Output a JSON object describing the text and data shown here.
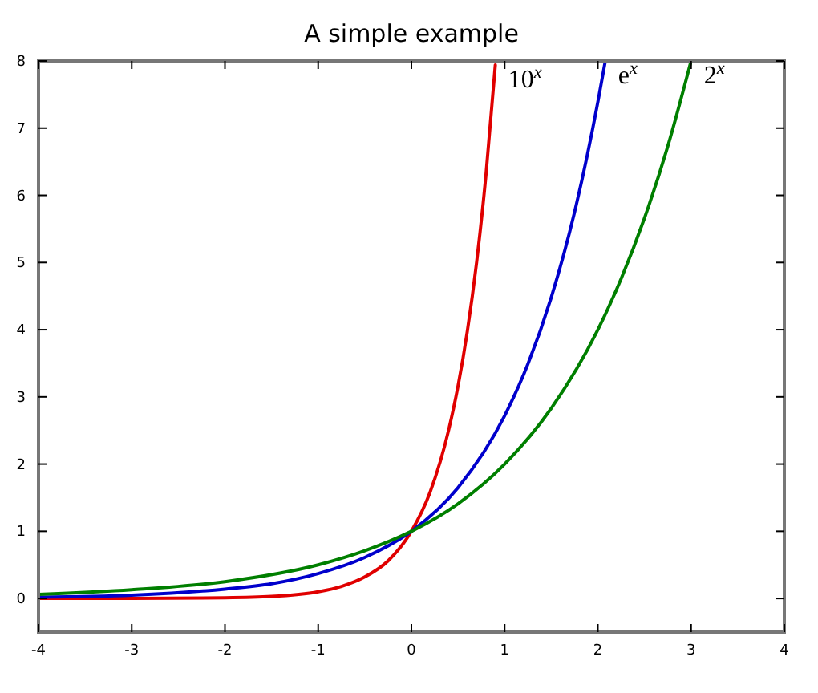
{
  "chart_data": {
    "type": "line",
    "title": "A simple example",
    "xlim": [
      -4,
      4
    ],
    "ylim": [
      -0.5,
      8
    ],
    "xticks": [
      -4,
      -3,
      -2,
      -1,
      0,
      1,
      2,
      3,
      4
    ],
    "yticks": [
      0,
      1,
      2,
      3,
      4,
      5,
      6,
      7,
      8
    ],
    "grid": false,
    "series": [
      {
        "name": "10$^{x}$",
        "color": "#e00000",
        "x": [
          -4,
          -3,
          -2,
          -1.5,
          -1,
          -0.75,
          -0.5,
          -0.25,
          0,
          0.2,
          0.4,
          0.5,
          0.6,
          0.7,
          0.8,
          0.9
        ],
        "values": [
          0,
          0,
          0.01,
          0.03,
          0.1,
          0.18,
          0.32,
          0.56,
          1,
          1.58,
          2.51,
          3.16,
          3.98,
          5.01,
          6.31,
          7.94
        ]
      },
      {
        "name": "e$^{x}$",
        "color": "#0000cc",
        "x": [
          -4,
          -3,
          -2,
          -1.5,
          -1,
          -0.5,
          0,
          0.5,
          1,
          1.25,
          1.5,
          1.75,
          2,
          2.08
        ],
        "values": [
          0.02,
          0.05,
          0.14,
          0.22,
          0.37,
          0.61,
          1,
          1.65,
          2.72,
          3.49,
          4.48,
          5.75,
          7.39,
          8
        ]
      },
      {
        "name": "2$^{x}$",
        "color": "#007f00",
        "x": [
          -4,
          -3,
          -2,
          -1,
          -0.5,
          0,
          0.5,
          1,
          1.5,
          2,
          2.25,
          2.5,
          2.75,
          3
        ],
        "values": [
          0.06,
          0.13,
          0.25,
          0.5,
          0.71,
          1,
          1.41,
          2,
          2.83,
          4,
          4.76,
          5.66,
          6.73,
          8
        ]
      }
    ]
  }
}
